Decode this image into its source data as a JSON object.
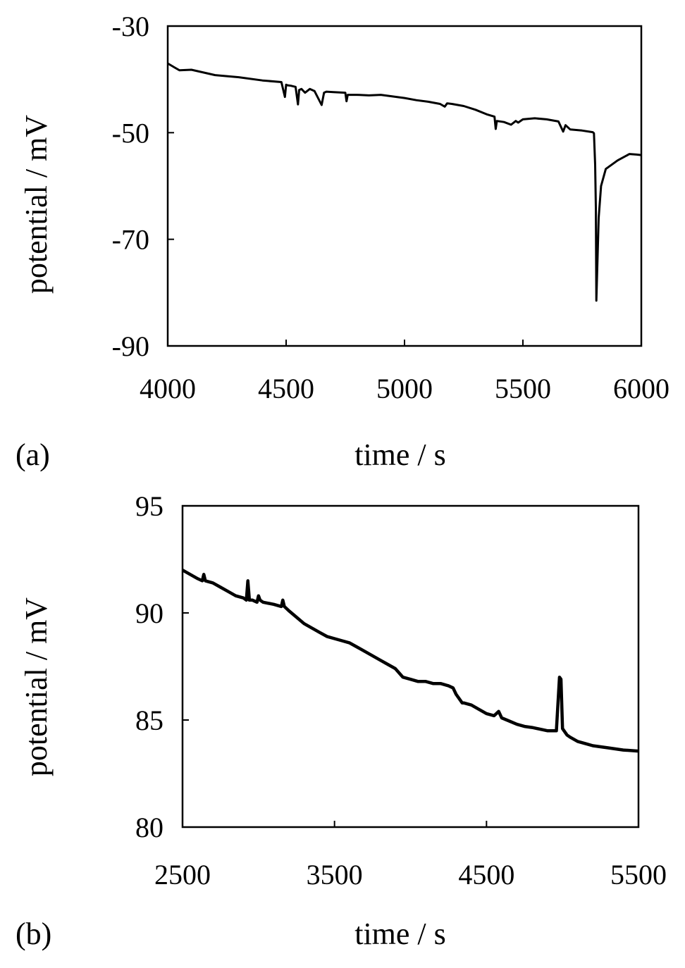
{
  "chart_data": [
    {
      "type": "line",
      "panel_label": "(a)",
      "xlabel": "time / s",
      "ylabel": "potential / mV",
      "xlim": [
        4000,
        6000
      ],
      "ylim": [
        -90,
        -30
      ],
      "xticks": [
        4000,
        4500,
        5000,
        5500,
        6000
      ],
      "yticks": [
        -30,
        -50,
        -70,
        -90
      ],
      "grid": false,
      "legend": "none",
      "series": [
        {
          "line_color": "#000000",
          "x": [
            4000,
            4030,
            4050,
            4100,
            4200,
            4300,
            4400,
            4480,
            4495,
            4500,
            4505,
            4520,
            4540,
            4550,
            4555,
            4565,
            4580,
            4600,
            4620,
            4650,
            4660,
            4670,
            4700,
            4750,
            4755,
            4760,
            4800,
            4850,
            4900,
            4950,
            5000,
            5050,
            5100,
            5150,
            5170,
            5180,
            5200,
            5250,
            5300,
            5350,
            5380,
            5385,
            5390,
            5420,
            5450,
            5470,
            5480,
            5500,
            5550,
            5600,
            5650,
            5670,
            5680,
            5700,
            5750,
            5795,
            5800,
            5805,
            5808,
            5810,
            5815,
            5820,
            5830,
            5850,
            5900,
            5950,
            5980,
            6000
          ],
          "y": [
            -37,
            -37.8,
            -38.3,
            -38.2,
            -39.2,
            -39.6,
            -40.2,
            -40.5,
            -43.3,
            -41,
            -41.1,
            -41.2,
            -41.4,
            -44.7,
            -42,
            -41.8,
            -42.5,
            -41.8,
            -42.2,
            -44.8,
            -42.5,
            -42.3,
            -42.4,
            -42.5,
            -44.1,
            -42.9,
            -42.9,
            -43,
            -42.9,
            -43.2,
            -43.5,
            -43.9,
            -44.2,
            -44.6,
            -45.1,
            -44.5,
            -44.6,
            -45,
            -45.7,
            -46.6,
            -47,
            -49.3,
            -47.8,
            -48,
            -48.5,
            -47.8,
            -48.1,
            -47.5,
            -47.3,
            -47.5,
            -47.9,
            -49.8,
            -48.6,
            -49.4,
            -49.6,
            -49.9,
            -50.1,
            -56,
            -64,
            -81.5,
            -74,
            -66,
            -60,
            -56.8,
            -55.2,
            -54,
            -54.1,
            -54.2
          ]
        }
      ]
    },
    {
      "type": "line",
      "panel_label": "(b)",
      "xlabel": "time / s",
      "ylabel": "potential / mV",
      "xlim": [
        2500,
        5500
      ],
      "ylim": [
        80,
        95
      ],
      "xticks": [
        2500,
        3500,
        4500,
        5500
      ],
      "yticks": [
        95,
        90,
        85,
        80
      ],
      "grid": false,
      "legend": "none",
      "series": [
        {
          "line_color": "#000000",
          "x": [
            2500,
            2550,
            2600,
            2630,
            2640,
            2650,
            2700,
            2750,
            2800,
            2850,
            2900,
            2920,
            2930,
            2940,
            2960,
            2990,
            3000,
            3010,
            3030,
            3100,
            3150,
            3160,
            3170,
            3200,
            3250,
            3300,
            3350,
            3400,
            3450,
            3500,
            3550,
            3600,
            3650,
            3700,
            3750,
            3800,
            3850,
            3900,
            3950,
            4000,
            4050,
            4100,
            4150,
            4200,
            4250,
            4280,
            4300,
            4320,
            4340,
            4350,
            4400,
            4450,
            4500,
            4550,
            4580,
            4600,
            4650,
            4700,
            4750,
            4800,
            4900,
            4960,
            4980,
            4990,
            5000,
            5010,
            5030,
            5050,
            5100,
            5150,
            5200,
            5300,
            5400,
            5500
          ],
          "y": [
            92,
            91.8,
            91.6,
            91.5,
            91.8,
            91.5,
            91.4,
            91.2,
            91.0,
            90.8,
            90.7,
            90.6,
            91.5,
            90.6,
            90.6,
            90.5,
            90.8,
            90.6,
            90.5,
            90.4,
            90.3,
            90.6,
            90.3,
            90.1,
            89.8,
            89.5,
            89.3,
            89.1,
            88.9,
            88.8,
            88.7,
            88.6,
            88.4,
            88.2,
            88.0,
            87.8,
            87.6,
            87.4,
            87.0,
            86.9,
            86.8,
            86.8,
            86.7,
            86.7,
            86.6,
            86.5,
            86.2,
            86.0,
            85.8,
            85.8,
            85.7,
            85.5,
            85.3,
            85.2,
            85.4,
            85.1,
            84.95,
            84.8,
            84.7,
            84.65,
            84.5,
            84.5,
            87.0,
            86.9,
            84.6,
            84.5,
            84.3,
            84.2,
            84.0,
            83.9,
            83.8,
            83.7,
            83.6,
            83.55
          ]
        }
      ]
    }
  ]
}
